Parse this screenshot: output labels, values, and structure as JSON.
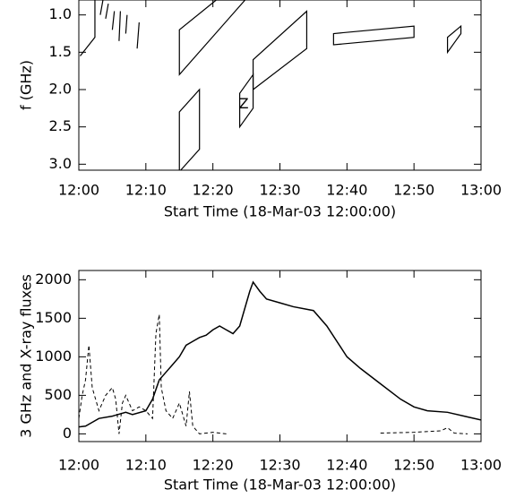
{
  "chart_data": [
    {
      "type": "polygon",
      "ylabel": "f (GHz)",
      "xlabel": "Start Time (18-Mar-03 12:00:00)",
      "xlim": [
        0,
        60
      ],
      "xticks": [
        {
          "value": 0,
          "label": "12:00"
        },
        {
          "value": 10,
          "label": "12:10"
        },
        {
          "value": 20,
          "label": "12:20"
        },
        {
          "value": 30,
          "label": "12:30"
        },
        {
          "value": 40,
          "label": "12:40"
        },
        {
          "value": 50,
          "label": "12:50"
        },
        {
          "value": 60,
          "label": "13:00"
        }
      ],
      "ylim": [
        0.8,
        3.08
      ],
      "y_inverted": true,
      "yticks": [
        {
          "value": 1,
          "label": "1.0"
        },
        1.5,
        {
          "value": 2,
          "label": "2.0"
        },
        2.5,
        {
          "value": 3,
          "label": "3.0"
        }
      ],
      "annotations": [
        "Z"
      ],
      "color": "#000000",
      "shapes": [
        {
          "x": [
            0.2,
            2.4,
            2.4
          ],
          "y": [
            1.55,
            1.3,
            0.8
          ]
        },
        {
          "x": [
            3.2,
            3.6
          ],
          "y": [
            1.0,
            0.8
          ]
        },
        {
          "x": [
            4.0,
            4.4
          ],
          "y": [
            1.05,
            0.85
          ]
        },
        {
          "x": [
            5.0,
            5.3
          ],
          "y": [
            1.2,
            0.95
          ]
        },
        {
          "x": [
            6.0,
            6.2
          ],
          "y": [
            1.35,
            0.95
          ]
        },
        {
          "x": [
            7.0,
            7.2
          ],
          "y": [
            1.25,
            1.0
          ]
        },
        {
          "x": [
            8.7,
            9.0
          ],
          "y": [
            1.45,
            1.1
          ]
        },
        {
          "x": [
            15,
            15,
            20.5,
            24.8
          ],
          "y": [
            1.8,
            1.2,
            0.8,
            0.8
          ]
        },
        {
          "x": [
            15,
            15,
            18,
            18
          ],
          "y": [
            3.1,
            2.3,
            2.0,
            2.8
          ]
        },
        {
          "x": [
            24,
            24,
            26,
            26
          ],
          "y": [
            2.5,
            2.05,
            1.8,
            2.25
          ]
        },
        {
          "x": [
            26,
            26,
            34,
            34
          ],
          "y": [
            2.0,
            1.6,
            0.95,
            1.45
          ]
        },
        {
          "x": [
            38,
            38,
            50,
            50
          ],
          "y": [
            1.4,
            1.25,
            1.15,
            1.3
          ]
        },
        {
          "x": [
            55,
            55,
            57,
            57
          ],
          "y": [
            1.5,
            1.3,
            1.15,
            1.25
          ]
        }
      ]
    },
    {
      "type": "line",
      "ylabel": "3 GHz and X-ray fluxes",
      "xlabel": "Start Time (18-Mar-03 12:00:00)",
      "xlim": [
        0,
        60
      ],
      "xticks": [
        {
          "value": 0,
          "label": "12:00"
        },
        {
          "value": 10,
          "label": "12:10"
        },
        {
          "value": 20,
          "label": "12:20"
        },
        {
          "value": 30,
          "label": "12:30"
        },
        {
          "value": 40,
          "label": "12:40"
        },
        {
          "value": 50,
          "label": "12:50"
        },
        {
          "value": 60,
          "label": "13:00"
        }
      ],
      "ylim": [
        -100,
        2120
      ],
      "yticks": [
        0,
        500,
        1000,
        1500,
        2000
      ],
      "series": [
        {
          "color": "#000000",
          "dash": false,
          "x": [
            0,
            1,
            2,
            3,
            5,
            7,
            8,
            10,
            11,
            12,
            13,
            14,
            15,
            16,
            17,
            18,
            19,
            20,
            21,
            22,
            23,
            24,
            25,
            25.5,
            26,
            27,
            28,
            30,
            32,
            35,
            37,
            40,
            42,
            45,
            48,
            50,
            52,
            55,
            58,
            60
          ],
          "values": [
            90,
            100,
            150,
            200,
            230,
            280,
            250,
            300,
            450,
            700,
            800,
            900,
            1000,
            1150,
            1200,
            1250,
            1280,
            1350,
            1400,
            1350,
            1300,
            1400,
            1700,
            1850,
            1970,
            1850,
            1750,
            1700,
            1650,
            1600,
            1400,
            1000,
            850,
            650,
            450,
            350,
            300,
            280,
            220,
            180
          ]
        },
        {
          "color": "#000000",
          "dash": true,
          "x": [
            0,
            0.5,
            1,
            1.5,
            2,
            3,
            4,
            5,
            5.5,
            6,
            6.5,
            7,
            8,
            9,
            10,
            11,
            11.5,
            12,
            12.3,
            13,
            14,
            15,
            16,
            16.5,
            17,
            18,
            20,
            22,
            null,
            45,
            50,
            54,
            55,
            56,
            58
          ],
          "values": [
            200,
            500,
            700,
            1150,
            600,
            300,
            500,
            600,
            450,
            0,
            400,
            500,
            300,
            350,
            300,
            200,
            1300,
            1550,
            600,
            300,
            200,
            400,
            100,
            550,
            100,
            0,
            20,
            0,
            null,
            10,
            20,
            40,
            80,
            10,
            0
          ]
        }
      ]
    }
  ]
}
